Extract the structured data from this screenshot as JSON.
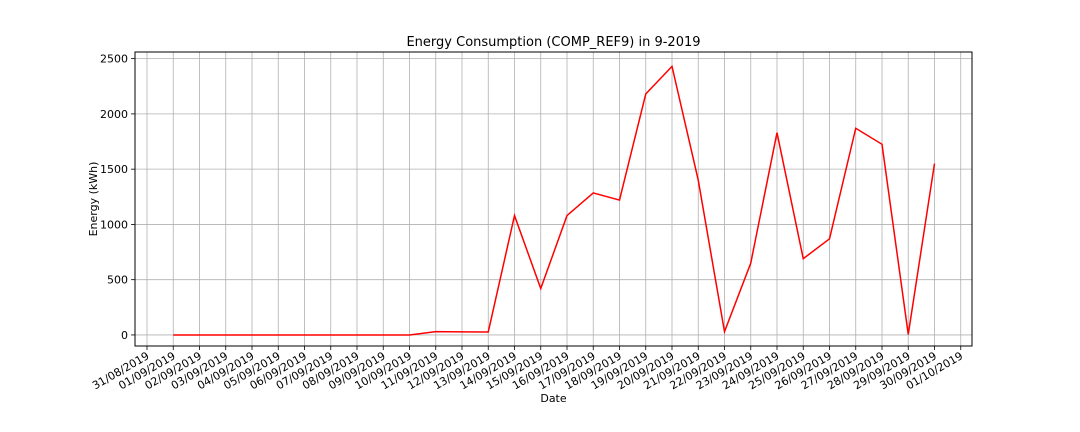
{
  "chart_data": {
    "type": "line",
    "title": "Energy Consumption (COMP_REF9) in 9-2019",
    "xlabel": "Date",
    "ylabel": "Energy (kWh)",
    "grid": true,
    "legend": "none",
    "line_color": "#ff0000",
    "ylim": [
      -100,
      2560
    ],
    "yticks": [
      0,
      500,
      1000,
      1500,
      2000,
      2500
    ],
    "x_tick_labels": [
      "31/08/2019",
      "01/09/2019",
      "02/09/2019",
      "03/09/2019",
      "04/09/2019",
      "05/09/2019",
      "06/09/2019",
      "07/09/2019",
      "08/09/2019",
      "09/09/2019",
      "10/09/2019",
      "11/09/2019",
      "12/09/2019",
      "13/09/2019",
      "14/09/2019",
      "15/09/2019",
      "16/09/2019",
      "17/09/2019",
      "18/09/2019",
      "19/09/2019",
      "20/09/2019",
      "21/09/2019",
      "22/09/2019",
      "23/09/2019",
      "24/09/2019",
      "25/09/2019",
      "26/09/2019",
      "27/09/2019",
      "28/09/2019",
      "29/09/2019",
      "30/09/2019",
      "01/10/2019"
    ],
    "x": [
      "01/09/2019",
      "02/09/2019",
      "03/09/2019",
      "04/09/2019",
      "05/09/2019",
      "06/09/2019",
      "07/09/2019",
      "08/09/2019",
      "09/09/2019",
      "10/09/2019",
      "11/09/2019",
      "12/09/2019",
      "13/09/2019",
      "14/09/2019",
      "15/09/2019",
      "16/09/2019",
      "17/09/2019",
      "18/09/2019",
      "19/09/2019",
      "20/09/2019",
      "21/09/2019",
      "22/09/2019",
      "23/09/2019",
      "24/09/2019",
      "25/09/2019",
      "26/09/2019",
      "27/09/2019",
      "28/09/2019",
      "29/09/2019",
      "30/09/2019"
    ],
    "series": [
      {
        "values": [
          0,
          0,
          0,
          0,
          0,
          0,
          0,
          0,
          0,
          0,
          30,
          28,
          27,
          1080,
          420,
          1080,
          1285,
          1220,
          2180,
          2430,
          1400,
          30,
          650,
          1830,
          690,
          870,
          1870,
          1725,
          5,
          1550
        ]
      }
    ]
  }
}
